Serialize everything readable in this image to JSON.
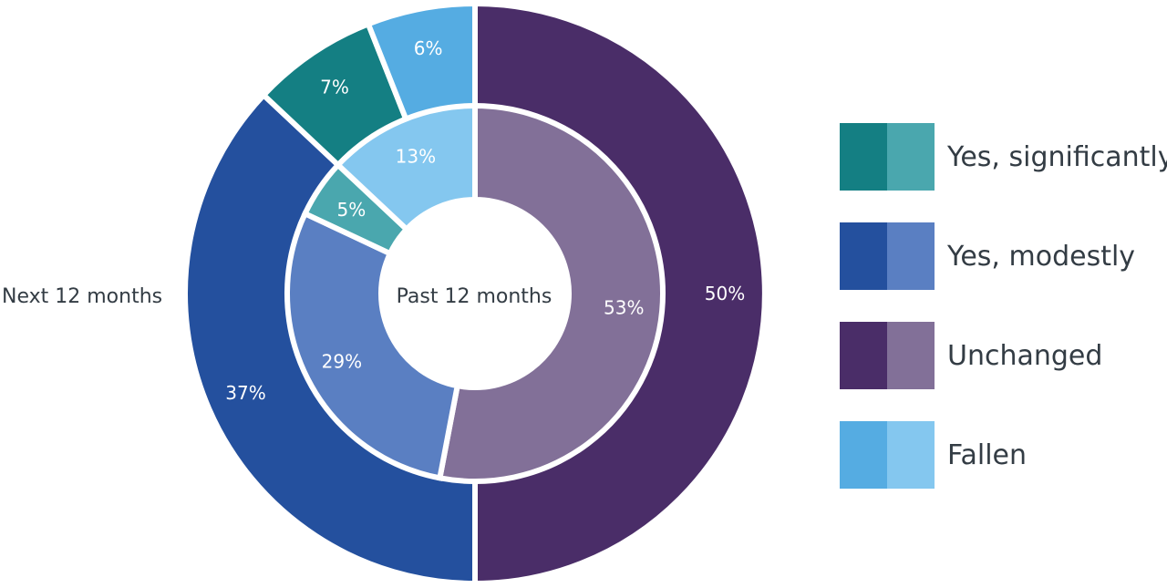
{
  "chart_data": {
    "type": "pie",
    "rings": [
      {
        "name": "Next 12 months",
        "categories": [
          "Unchanged",
          "Yes, modestly",
          "Yes, significantly",
          "Fallen"
        ],
        "values": [
          50,
          37,
          7,
          6
        ],
        "labels": [
          "50%",
          "37%",
          "7%",
          "6%"
        ],
        "colors": [
          "#4a2d68",
          "#24509e",
          "#147f83",
          "#55ace2"
        ]
      },
      {
        "name": "Past 12 months",
        "categories": [
          "Unchanged",
          "Yes, modestly",
          "Yes, significantly",
          "Fallen"
        ],
        "values": [
          53,
          29,
          5,
          13
        ],
        "labels": [
          "53%",
          "29%",
          "5%",
          "13%"
        ],
        "colors": [
          "#827098",
          "#5a7fc2",
          "#4aa7ae",
          "#84c7ef"
        ]
      }
    ],
    "legend": {
      "placement": "right",
      "items": [
        {
          "label": "Yes, significantly",
          "colors": [
            "#147f83",
            "#4aa7ae"
          ]
        },
        {
          "label": "Yes, modestly",
          "colors": [
            "#24509e",
            "#5a7fc2"
          ]
        },
        {
          "label": "Unchanged",
          "colors": [
            "#4a2d68",
            "#827098"
          ]
        },
        {
          "label": "Fallen",
          "colors": [
            "#55ace2",
            "#84c7ef"
          ]
        }
      ]
    }
  }
}
